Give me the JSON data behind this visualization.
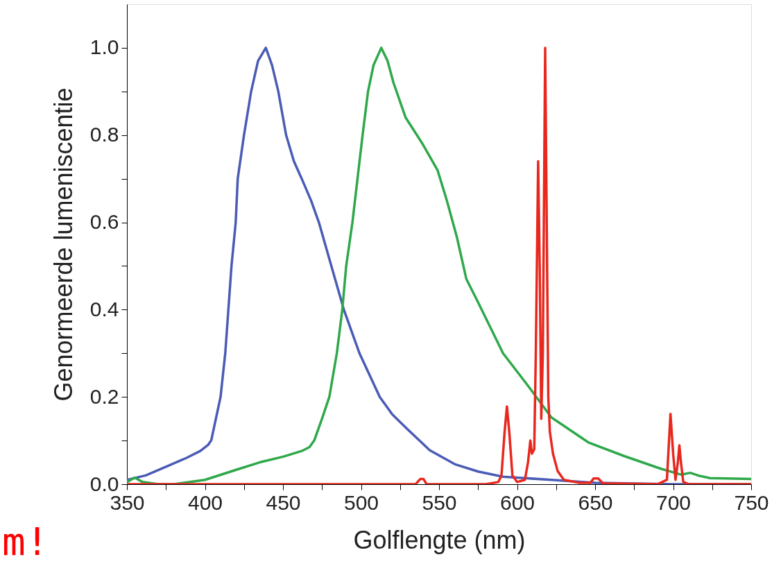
{
  "chart_data": {
    "type": "line",
    "xlabel": "Golflengte (nm)",
    "ylabel": "Genormeerde lumeniscentie",
    "xlim": [
      350,
      750
    ],
    "ylim": [
      0,
      1.1
    ],
    "xticks": [
      350,
      {
        "value": 375,
        "label": null
      },
      400,
      {
        "value": 425,
        "label": null
      },
      450,
      {
        "value": 475,
        "label": null
      },
      500,
      {
        "value": 525,
        "label": null
      },
      550,
      {
        "value": 575,
        "label": null
      },
      600,
      {
        "value": 625,
        "label": null
      },
      650,
      {
        "value": 675,
        "label": null
      },
      700,
      {
        "value": 725,
        "label": null
      },
      750
    ],
    "yticks": [
      {
        "value": 0,
        "label": "0.0"
      },
      {
        "value": 0.1,
        "label": null
      },
      0.2,
      {
        "value": 0.3,
        "label": null
      },
      0.4,
      {
        "value": 0.5,
        "label": null
      },
      0.6,
      {
        "value": 0.7,
        "label": null
      },
      0.8,
      {
        "value": 0.9,
        "label": null
      },
      {
        "value": 1,
        "label": "1.0"
      }
    ],
    "grid": false,
    "marker": "none",
    "line_style": "solid",
    "annotations": [
      "m!"
    ],
    "series": [
      {
        "color": "#4a5bb5",
        "x": [
          350,
          362,
          375,
          388,
          397,
          402,
          404,
          407,
          410,
          413,
          415,
          417,
          419.7,
          421,
          425,
          429.6,
          434,
          439,
          443,
          447,
          452,
          457,
          462,
          468,
          473,
          477,
          481,
          489,
          499,
          512,
          520,
          528.6,
          544,
          560,
          575,
          591,
          622,
          650,
          700,
          750
        ],
        "values": [
          0.01,
          0.02,
          0.04,
          0.06,
          0.076,
          0.09,
          0.1,
          0.15,
          0.2,
          0.3,
          0.4,
          0.5,
          0.6,
          0.7,
          0.8,
          0.9,
          0.97,
          1.0,
          0.96,
          0.9,
          0.8,
          0.74,
          0.7,
          0.65,
          0.6,
          0.55,
          0.5,
          0.4,
          0.3,
          0.2,
          0.16,
          0.13,
          0.078,
          0.046,
          0.029,
          0.017,
          0.01,
          0.003,
          0,
          0
        ]
      },
      {
        "color": "#2ea84a",
        "x": [
          350,
          355,
          360,
          370,
          380,
          400,
          420,
          435,
          450,
          462,
          467,
          470,
          475,
          479.7,
          484.5,
          488,
          490.5,
          494.5,
          501,
          504.5,
          508,
          513,
          517,
          520.8,
          528.6,
          539.4,
          549,
          555,
          561.5,
          567.5,
          575,
          591,
          606.7,
          622,
          646,
          669,
          692.5,
          705,
          711,
          716,
          723.6,
          750
        ],
        "values": [
          0.005,
          0.015,
          0.005,
          0,
          0,
          0.01,
          0.033,
          0.05,
          0.063,
          0.076,
          0.085,
          0.1,
          0.15,
          0.2,
          0.3,
          0.4,
          0.5,
          0.6,
          0.8,
          0.9,
          0.96,
          1.0,
          0.97,
          0.92,
          0.84,
          0.78,
          0.72,
          0.65,
          0.565,
          0.47,
          0.417,
          0.3,
          0.227,
          0.153,
          0.095,
          0.064,
          0.035,
          0.022,
          0.026,
          0.02,
          0.014,
          0.012
        ]
      },
      {
        "color": "#e8281e",
        "x": [
          350,
          535,
          538,
          540,
          542,
          580,
          588,
          590,
          592,
          593.5,
          595,
          597,
          600,
          605,
          607,
          608.5,
          609.5,
          611,
          612,
          613.5,
          614.5,
          615.5,
          616.5,
          618,
          619,
          620,
          621,
          623,
          626,
          630,
          640,
          647,
          649,
          652,
          655,
          690,
          696,
          698.3,
          700,
          701.5,
          703,
          704,
          705,
          706.5,
          710,
          750
        ],
        "values": [
          0,
          0,
          0.012,
          0.012,
          0,
          0,
          0.005,
          0.02,
          0.12,
          0.178,
          0.12,
          0.02,
          0.005,
          0.01,
          0.05,
          0.1,
          0.07,
          0.08,
          0.3,
          0.74,
          0.5,
          0.15,
          0.3,
          1.0,
          0.6,
          0.2,
          0.12,
          0.07,
          0.03,
          0.01,
          0.003,
          0.003,
          0.013,
          0.013,
          0.002,
          0,
          0.01,
          0.161,
          0.07,
          0.01,
          0.05,
          0.089,
          0.05,
          0.005,
          0,
          0
        ]
      }
    ]
  }
}
